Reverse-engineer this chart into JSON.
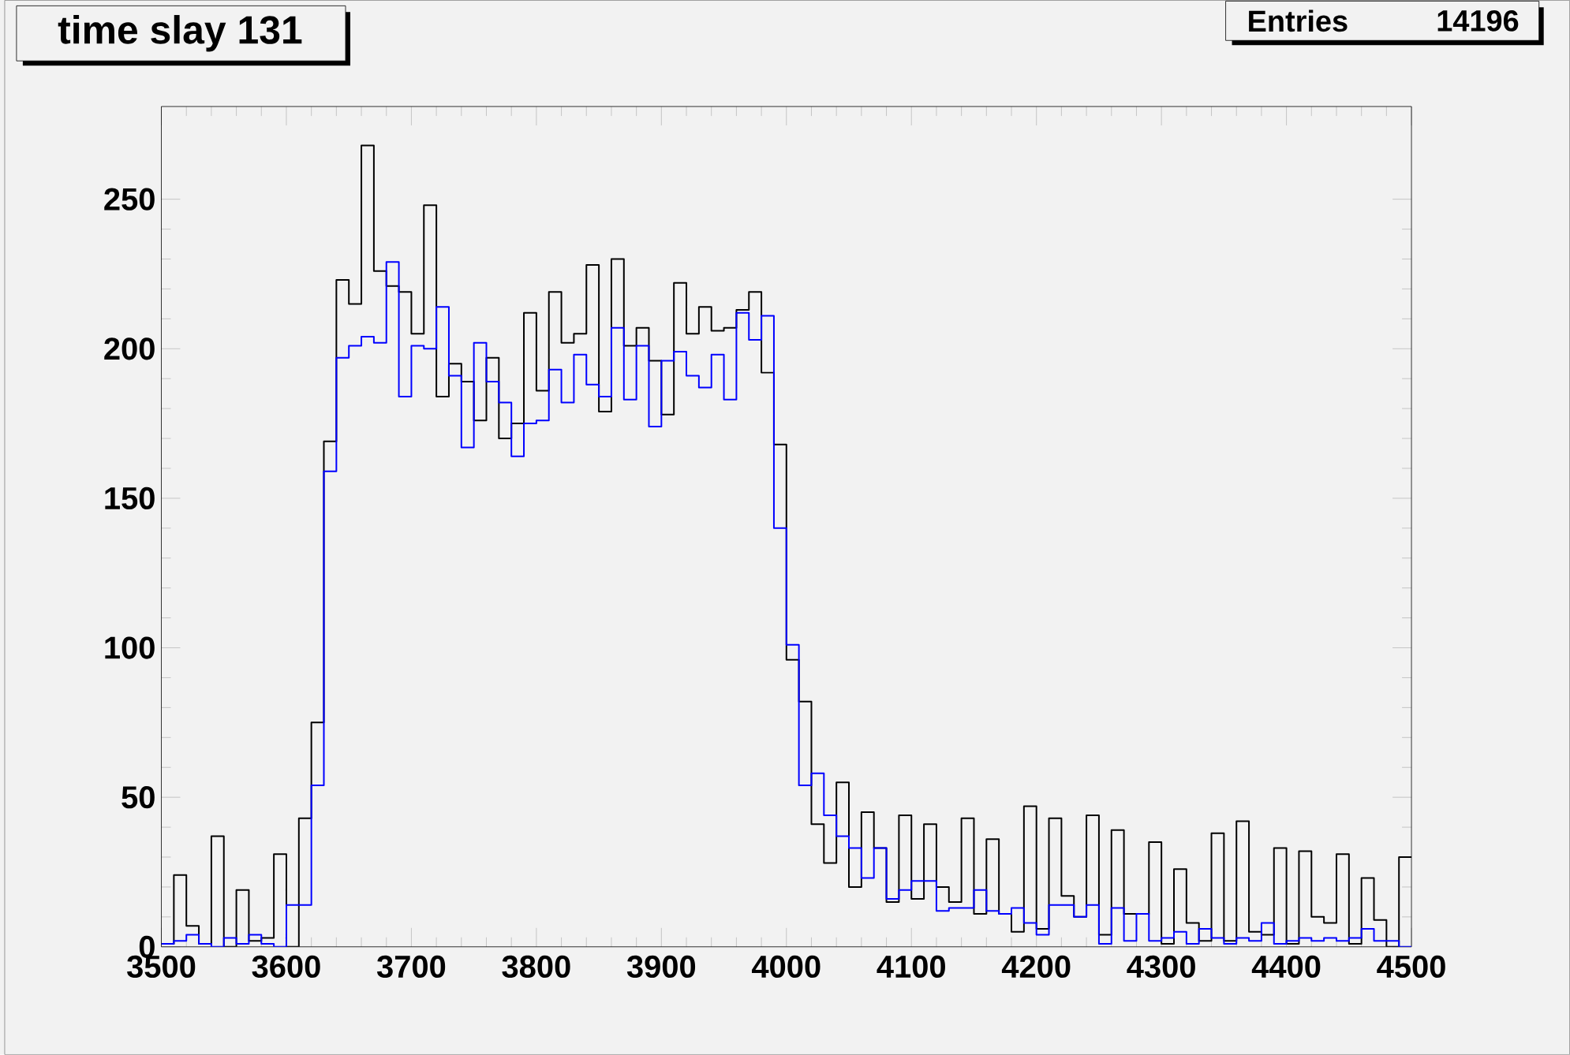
{
  "chart_data": {
    "type": "histogram",
    "title": "time slay 131",
    "annotations": [
      "Entries",
      "14196"
    ],
    "bins": [
      3500,
      3510,
      3520,
      3530,
      3540,
      3550,
      3560,
      3570,
      3580,
      3590,
      3600,
      3610,
      3620,
      3630,
      3640,
      3650,
      3660,
      3670,
      3680,
      3690,
      3700,
      3710,
      3720,
      3730,
      3740,
      3750,
      3760,
      3770,
      3780,
      3790,
      3800,
      3810,
      3820,
      3830,
      3840,
      3850,
      3860,
      3870,
      3880,
      3890,
      3900,
      3910,
      3920,
      3930,
      3940,
      3950,
      3960,
      3970,
      3980,
      3990,
      4000,
      4010,
      4020,
      4030,
      4040,
      4050,
      4060,
      4070,
      4080,
      4090,
      4100,
      4110,
      4120,
      4130,
      4140,
      4150,
      4160,
      4170,
      4180,
      4190,
      4200,
      4210,
      4220,
      4230,
      4240,
      4250,
      4260,
      4270,
      4280,
      4290,
      4300,
      4310,
      4320,
      4330,
      4340,
      4350,
      4360,
      4370,
      4380,
      4390,
      4400,
      4410,
      4420,
      4430,
      4440,
      4450,
      4460,
      4470,
      4480,
      4490,
      4500
    ],
    "series": [
      {
        "color": "#000000",
        "values": [
          1,
          24,
          7,
          1,
          37,
          0,
          19,
          2,
          3,
          31,
          0,
          43,
          75,
          169,
          223,
          215,
          268,
          226,
          221,
          219,
          205,
          248,
          184,
          195,
          189,
          176,
          197,
          170,
          175,
          212,
          186,
          219,
          202,
          205,
          228,
          179,
          230,
          201,
          207,
          196,
          178,
          222,
          205,
          214,
          206,
          207,
          213,
          219,
          192,
          168,
          96,
          82,
          41,
          28,
          55,
          20,
          45,
          33,
          15,
          44,
          16,
          41,
          20,
          15,
          43,
          11,
          36,
          11,
          5,
          47,
          6,
          43,
          17,
          10,
          44,
          4,
          39,
          11,
          11,
          35,
          1,
          26,
          8,
          2,
          38,
          2,
          42,
          5,
          4,
          33,
          1,
          32,
          10,
          8,
          31,
          1,
          23,
          9,
          0,
          30
        ]
      },
      {
        "color": "#0000ff",
        "values": [
          1,
          2,
          4,
          1,
          0,
          3,
          1,
          4,
          1,
          0,
          14,
          14,
          54,
          159,
          197,
          201,
          204,
          202,
          229,
          184,
          201,
          200,
          214,
          191,
          167,
          202,
          189,
          182,
          164,
          175,
          176,
          193,
          182,
          198,
          188,
          184,
          207,
          183,
          201,
          174,
          196,
          199,
          191,
          187,
          198,
          183,
          212,
          203,
          211,
          140,
          101,
          54,
          58,
          44,
          37,
          33,
          23,
          33,
          16,
          19,
          22,
          22,
          12,
          13,
          13,
          19,
          12,
          11,
          13,
          8,
          4,
          14,
          14,
          10,
          14,
          1,
          13,
          2,
          11,
          2,
          3,
          5,
          1,
          6,
          3,
          1,
          3,
          2,
          8,
          1,
          2,
          3,
          2,
          3,
          2,
          3,
          6,
          2,
          2,
          0
        ]
      }
    ],
    "xlim": [
      3500,
      4500
    ],
    "ylim": [
      0,
      281
    ],
    "xticks": [
      3500,
      3600,
      3700,
      3800,
      3900,
      4000,
      4100,
      4200,
      4300,
      4400,
      4500
    ],
    "yticks": [
      0,
      50,
      100,
      150,
      200,
      250
    ]
  }
}
